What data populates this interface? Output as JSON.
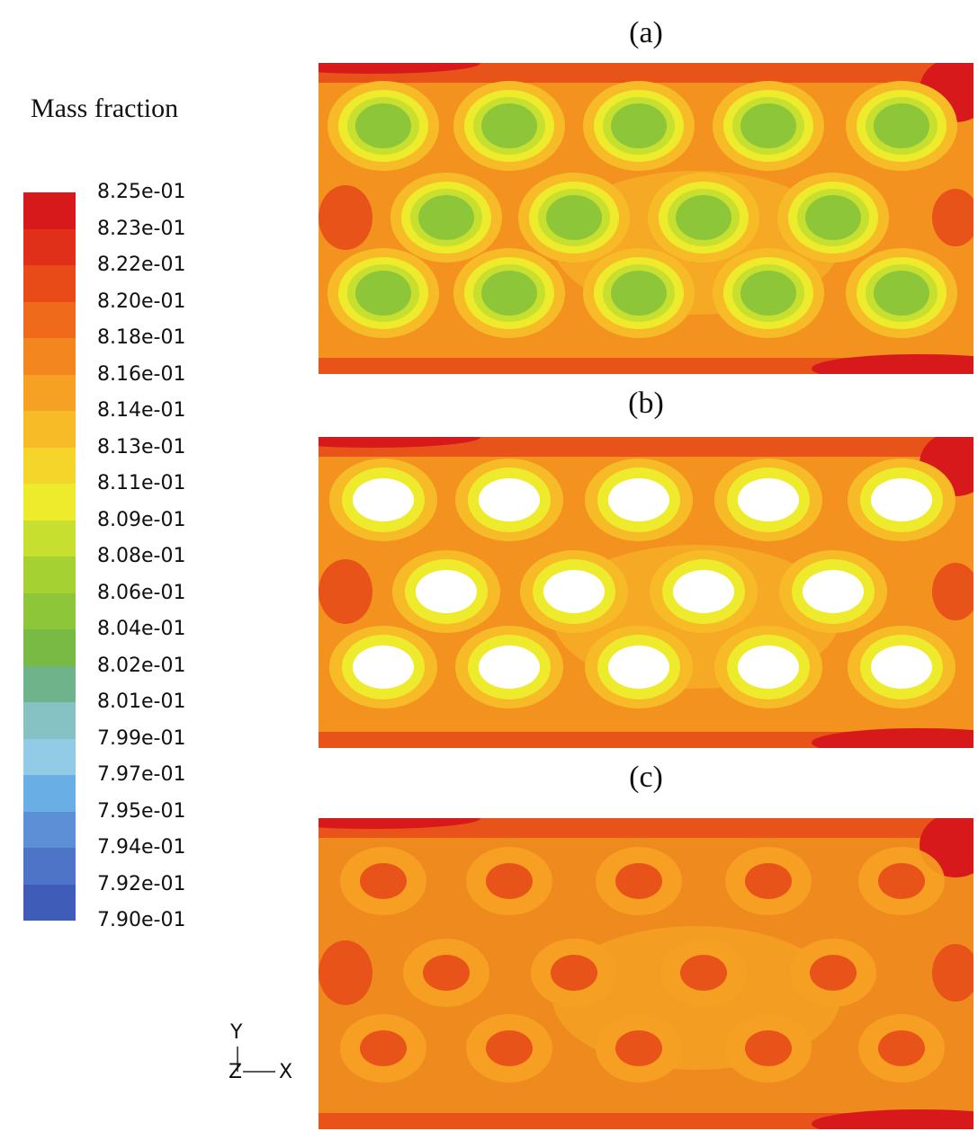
{
  "legend": {
    "title": "Mass fraction",
    "ticks": [
      "8.25e-01",
      "8.23e-01",
      "8.22e-01",
      "8.20e-01",
      "8.18e-01",
      "8.16e-01",
      "8.14e-01",
      "8.13e-01",
      "8.11e-01",
      "8.09e-01",
      "8.08e-01",
      "8.06e-01",
      "8.04e-01",
      "8.02e-01",
      "8.01e-01",
      "7.99e-01",
      "7.97e-01",
      "7.95e-01",
      "7.94e-01",
      "7.92e-01",
      "7.90e-01"
    ],
    "colors": [
      "#d7191c",
      "#e0301a",
      "#e84a18",
      "#ef6a1a",
      "#f3861f",
      "#f6a124",
      "#f8bb28",
      "#f5d52a",
      "#eeea2c",
      "#c7df2e",
      "#a6d132",
      "#8ec63a",
      "#78ba44",
      "#6fb38a",
      "#86c2c4",
      "#91cbe6",
      "#6aaee6",
      "#5c8fd6",
      "#4d74c6",
      "#3f5cb8"
    ],
    "color_high": "#d7191c",
    "color_low": "#3f5cb8"
  },
  "panels": [
    {
      "label": "(a)",
      "obstacles": "green cores"
    },
    {
      "label": "(b)",
      "obstacles": "white cores"
    },
    {
      "label": "(c)",
      "obstacles": "orange cores"
    }
  ],
  "axes": {
    "y": "Y",
    "z": "Z",
    "x": "X"
  }
}
